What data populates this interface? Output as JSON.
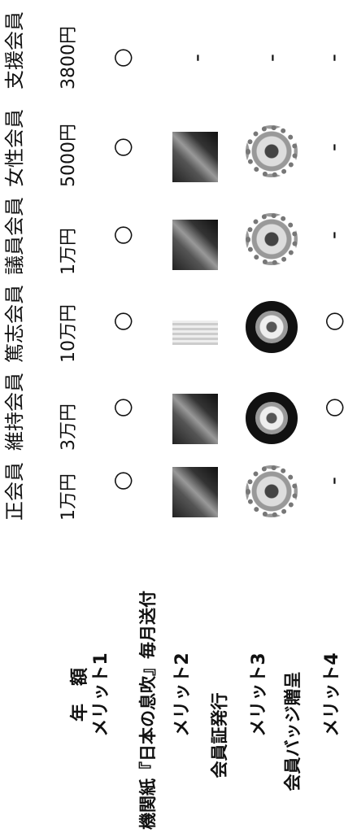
{
  "table": {
    "columns": [
      "正会員",
      "維持会員",
      "篤志会員",
      "議員会員",
      "女性会員",
      "支援会員"
    ],
    "rows": [
      {
        "label": "年　額",
        "cells": [
          "1万円",
          "3万円",
          "10万円",
          "1万円",
          "5000円",
          "3800円"
        ]
      },
      {
        "label": "メリット1",
        "description": "機関紙『日本の息吹』毎月送付",
        "cells": [
          "○",
          "○",
          "○",
          "○",
          "○",
          "○"
        ]
      },
      {
        "label": "メリット2",
        "description": "会員証発行",
        "cells": [
          null,
          null,
          null,
          null,
          null,
          "-"
        ]
      },
      {
        "label": "メリット3",
        "description": "会員バッジ贈呈",
        "cells": [
          null,
          null,
          null,
          null,
          null,
          "-"
        ]
      },
      {
        "label": "メリット4",
        "cells": [
          "-",
          "○",
          "○",
          "-",
          "-",
          "-"
        ]
      }
    ]
  }
}
